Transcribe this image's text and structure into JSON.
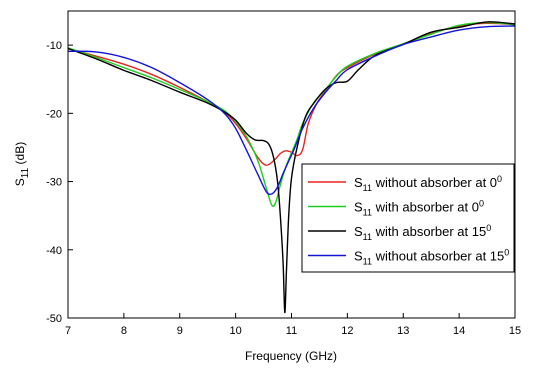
{
  "chart_data": {
    "type": "line",
    "xlabel": "Frequency (GHz)",
    "ylabel": {
      "main": "S",
      "sub": "11",
      "rest": " (dB)"
    },
    "xlim": [
      7,
      15
    ],
    "ylim": [
      -50,
      -5
    ],
    "xticks": [
      7,
      8,
      9,
      10,
      11,
      12,
      13,
      14,
      15
    ],
    "yticks": [
      -50,
      -40,
      -30,
      -20,
      -10
    ],
    "grid": false,
    "legend_position": "center-right",
    "series": [
      {
        "name": {
          "main": "S",
          "sub": "11",
          "rest": " without absorber at 0",
          "sup": "0"
        },
        "color": "#e8251f",
        "x": [
          7,
          7.5,
          8,
          8.5,
          9,
          9.5,
          9.8,
          10,
          10.2,
          10.4,
          10.55,
          10.7,
          10.8,
          10.9,
          11.0,
          11.1,
          11.2,
          11.3,
          11.45,
          11.6,
          11.8,
          12,
          12.5,
          13,
          13.5,
          14,
          14.5,
          15
        ],
        "y": [
          -10.5,
          -11.6,
          -12.8,
          -14.3,
          -16.2,
          -18.3,
          -19.8,
          -21.5,
          -23.8,
          -26.5,
          -27.6,
          -26.8,
          -25.9,
          -25.5,
          -25.7,
          -26.2,
          -25.3,
          -21.5,
          -18.6,
          -16.8,
          -14.5,
          -13.3,
          -11.3,
          -9.8,
          -8.3,
          -7.2,
          -6.8,
          -7.0
        ]
      },
      {
        "name": {
          "main": "S",
          "sub": "11",
          "rest": " with absorber at 0",
          "sup": "0"
        },
        "color": "#1ecc1e",
        "x": [
          7,
          7.5,
          8,
          8.5,
          9,
          9.5,
          9.8,
          10,
          10.2,
          10.4,
          10.55,
          10.65,
          10.72,
          10.8,
          10.9,
          11.0,
          11.1,
          11.2,
          11.4,
          11.6,
          11.8,
          12,
          12.5,
          13,
          13.5,
          14,
          14.5,
          15
        ],
        "y": [
          -10.4,
          -11.8,
          -13.3,
          -14.8,
          -16.5,
          -18.3,
          -19.6,
          -21.2,
          -23.5,
          -27.0,
          -31.0,
          -33.5,
          -33.0,
          -30.5,
          -27.8,
          -25.8,
          -23.8,
          -21.5,
          -18.4,
          -16.6,
          -14.6,
          -13.1,
          -11.2,
          -9.8,
          -8.4,
          -7.1,
          -6.7,
          -7.0
        ]
      },
      {
        "name": {
          "main": "S",
          "sub": "11",
          "rest": " with absorber at 15",
          "sup": "0"
        },
        "color": "#000000",
        "x": [
          7,
          7.5,
          8,
          8.5,
          9,
          9.5,
          9.8,
          10,
          10.2,
          10.35,
          10.5,
          10.6,
          10.68,
          10.75,
          10.8,
          10.85,
          10.88,
          10.91,
          10.95,
          11.0,
          11.1,
          11.25,
          11.4,
          11.6,
          11.8,
          12,
          12.2,
          12.5,
          13,
          13.5,
          14,
          14.5,
          15
        ],
        "y": [
          -10.5,
          -12.0,
          -13.7,
          -15.2,
          -16.9,
          -18.5,
          -19.8,
          -21.0,
          -23.0,
          -23.9,
          -24.0,
          -24.6,
          -26.5,
          -30.0,
          -35.0,
          -42.0,
          -49.2,
          -43.0,
          -35.0,
          -29.5,
          -25.0,
          -20.5,
          -18.5,
          -16.5,
          -15.5,
          -15.3,
          -13.6,
          -11.5,
          -9.9,
          -8.1,
          -7.4,
          -6.6,
          -6.9
        ]
      },
      {
        "name": {
          "main": "S",
          "sub": "11",
          "rest": " without absorber at 15",
          "sup": "0"
        },
        "color": "#1414d8",
        "x": [
          7,
          7.5,
          8,
          8.5,
          9,
          9.5,
          9.8,
          10,
          10.2,
          10.4,
          10.55,
          10.65,
          10.75,
          10.85,
          10.95,
          11.05,
          11.2,
          11.4,
          11.6,
          11.8,
          12,
          12.5,
          13,
          13.5,
          14,
          14.5,
          15
        ],
        "y": [
          -10.9,
          -11.0,
          -11.8,
          -13.3,
          -15.5,
          -18.0,
          -20.0,
          -22.2,
          -25.5,
          -29.0,
          -31.5,
          -31.8,
          -30.8,
          -28.8,
          -27.0,
          -25.2,
          -22.2,
          -19.2,
          -17.0,
          -15.2,
          -13.6,
          -11.6,
          -9.9,
          -8.8,
          -7.8,
          -7.3,
          -7.2
        ]
      }
    ]
  }
}
